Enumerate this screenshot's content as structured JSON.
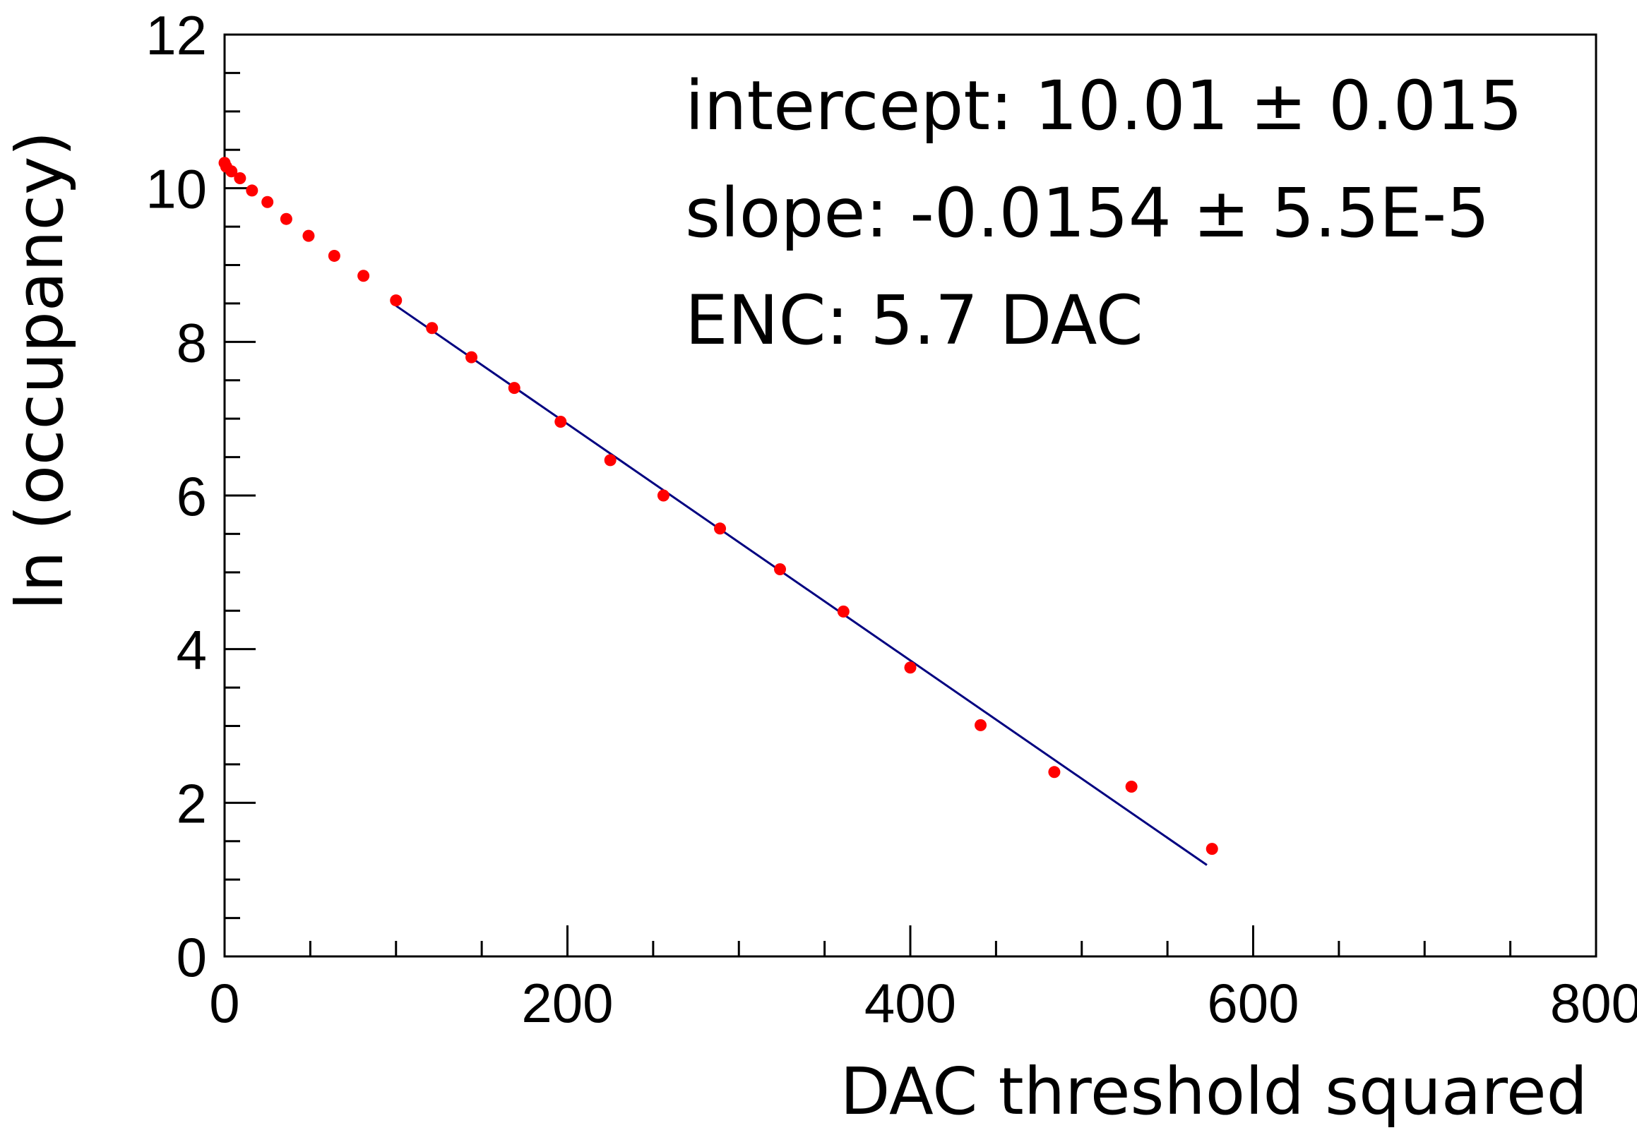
{
  "chart_data": {
    "type": "scatter",
    "title": "",
    "xlabel": "DAC threshold squared",
    "ylabel": "ln (occupancy)",
    "xlim": [
      0,
      800
    ],
    "ylim": [
      0,
      12
    ],
    "x_ticks": [
      "0",
      "200",
      "400",
      "600",
      "800"
    ],
    "y_ticks": [
      "0",
      "2",
      "4",
      "6",
      "8",
      "10",
      "12"
    ],
    "grid": false,
    "colors": {
      "points": "#ff0000",
      "fit_line": "#000080",
      "axes": "#000000"
    },
    "series": [
      {
        "type": "scatter",
        "x": [
          0,
          1,
          4,
          9,
          16,
          25,
          36,
          49,
          64,
          81,
          100,
          121,
          144,
          169,
          196,
          225,
          256,
          289,
          324,
          361,
          400,
          441,
          484,
          529,
          576
        ],
        "y": [
          10.33,
          10.28,
          10.22,
          10.13,
          9.97,
          9.82,
          9.6,
          9.38,
          9.12,
          8.86,
          8.54,
          8.18,
          7.8,
          7.4,
          6.96,
          6.46,
          6.0,
          5.57,
          5.04,
          4.49,
          3.76,
          3.01,
          2.4,
          2.21,
          1.4
        ]
      },
      {
        "type": "line",
        "x": [
          100,
          573
        ],
        "y": [
          8.47,
          1.19
        ]
      }
    ],
    "annotations": [
      "intercept: 10.01 ± 0.015",
      "slope: -0.0154 ± 5.5E-5",
      "ENC: 5.7 DAC"
    ]
  }
}
